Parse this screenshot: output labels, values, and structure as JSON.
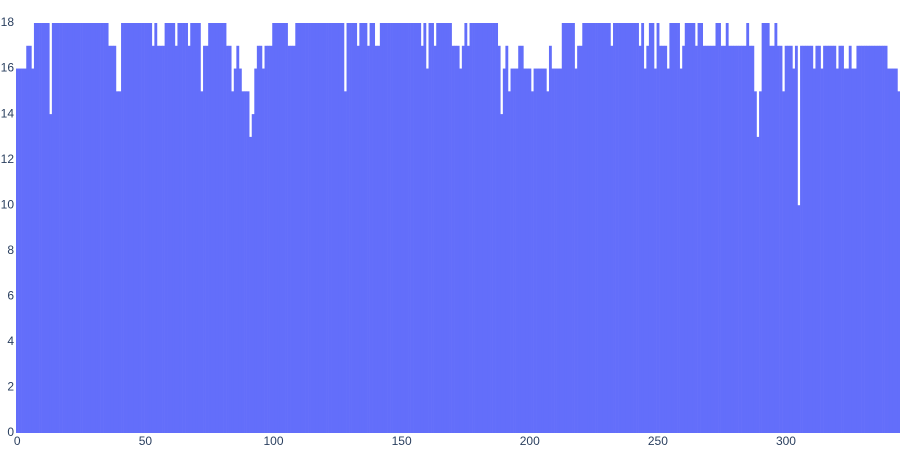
{
  "chart_data": {
    "type": "bar",
    "color": "#636efa",
    "x": [
      0,
      1,
      2,
      3,
      4,
      5,
      6,
      7,
      8,
      9,
      10,
      11,
      12,
      13,
      14,
      15,
      16,
      17,
      18,
      19,
      20,
      21,
      22,
      23,
      24,
      25,
      26,
      27,
      28,
      29,
      30,
      31,
      32,
      33,
      34,
      35,
      36,
      37,
      38,
      39,
      40,
      41,
      42,
      43,
      44,
      45,
      46,
      47,
      48,
      49,
      50,
      51,
      52,
      53,
      54,
      55,
      56,
      57,
      58,
      59,
      60,
      61,
      62,
      63,
      64,
      65,
      66,
      67,
      68,
      69,
      70,
      71,
      72,
      73,
      74,
      75,
      76,
      77,
      78,
      79,
      80,
      81,
      82,
      83,
      84,
      85,
      86,
      87,
      88,
      89,
      90,
      91,
      92,
      93,
      94,
      95,
      96,
      97,
      98,
      99,
      100,
      101,
      102,
      103,
      104,
      105,
      106,
      107,
      108,
      109,
      110,
      111,
      112,
      113,
      114,
      115,
      116,
      117,
      118,
      119,
      120,
      121,
      122,
      123,
      124,
      125,
      126,
      127,
      128,
      129,
      130,
      131,
      132,
      133,
      134,
      135,
      136,
      137,
      138,
      139,
      140,
      141,
      142,
      143,
      144,
      145,
      146,
      147,
      148,
      149,
      150,
      151,
      152,
      153,
      154,
      155,
      156,
      157,
      158,
      159,
      160,
      161,
      162,
      163,
      164,
      165,
      166,
      167,
      168,
      169,
      170,
      171,
      172,
      173,
      174,
      175,
      176,
      177,
      178,
      179,
      180,
      181,
      182,
      183,
      184,
      185,
      186,
      187,
      188,
      189,
      190,
      191,
      192,
      193,
      194,
      195,
      196,
      197,
      198,
      199,
      200,
      201,
      202,
      203,
      204,
      205,
      206,
      207,
      208,
      209,
      210,
      211,
      212,
      213,
      214,
      215,
      216,
      217,
      218,
      219,
      220,
      221,
      222,
      223,
      224,
      225,
      226,
      227,
      228,
      229,
      230,
      231,
      232,
      233,
      234,
      235,
      236,
      237,
      238,
      239,
      240,
      241,
      242,
      243,
      244,
      245,
      246,
      247,
      248,
      249,
      250,
      251,
      252,
      253,
      254,
      255,
      256,
      257,
      258,
      259,
      260,
      261,
      262,
      263,
      264,
      265,
      266,
      267,
      268,
      269,
      270,
      271,
      272,
      273,
      274,
      275,
      276,
      277,
      278,
      279,
      280,
      281,
      282,
      283,
      284,
      285,
      286,
      287,
      288,
      289,
      290,
      291,
      292,
      293,
      294,
      295,
      296,
      297,
      298,
      299,
      300,
      301,
      302,
      303,
      304,
      305,
      306,
      307,
      308,
      309,
      310,
      311,
      312,
      313,
      314,
      315,
      316,
      317,
      318,
      319,
      320,
      321,
      322,
      323,
      324,
      325,
      326,
      327,
      328,
      329,
      330,
      331,
      332,
      333,
      334,
      335,
      336,
      337,
      338,
      339,
      340,
      341,
      342,
      343,
      344
    ],
    "values": [
      16,
      16,
      16,
      16,
      17,
      17,
      16,
      18,
      18,
      18,
      18,
      18,
      18,
      14,
      18,
      18,
      18,
      18,
      18,
      18,
      18,
      18,
      18,
      18,
      18,
      18,
      18,
      18,
      18,
      18,
      18,
      18,
      18,
      18,
      18,
      18,
      17,
      17,
      17,
      15,
      15,
      18,
      18,
      18,
      18,
      18,
      18,
      18,
      18,
      18,
      18,
      18,
      18,
      17,
      18,
      17,
      17,
      17,
      18,
      18,
      18,
      18,
      17,
      18,
      18,
      18,
      18,
      17,
      18,
      18,
      18,
      18,
      15,
      17,
      17,
      18,
      18,
      18,
      18,
      18,
      18,
      18,
      17,
      17,
      15,
      16,
      17,
      16,
      15,
      15,
      15,
      13,
      14,
      16,
      17,
      17,
      16,
      17,
      17,
      17,
      18,
      18,
      18,
      18,
      18,
      18,
      17,
      17,
      17,
      18,
      18,
      18,
      18,
      18,
      18,
      18,
      18,
      18,
      18,
      18,
      18,
      18,
      18,
      18,
      18,
      18,
      18,
      18,
      15,
      18,
      18,
      18,
      18,
      17,
      18,
      18,
      18,
      17,
      18,
      18,
      17,
      17,
      18,
      18,
      18,
      18,
      18,
      18,
      18,
      18,
      18,
      18,
      18,
      18,
      18,
      18,
      18,
      18,
      17,
      18,
      16,
      18,
      18,
      17,
      18,
      18,
      18,
      18,
      18,
      18,
      17,
      17,
      17,
      16,
      17,
      18,
      17,
      18,
      18,
      18,
      18,
      18,
      18,
      18,
      18,
      18,
      18,
      18,
      17,
      14,
      16,
      17,
      15,
      16,
      16,
      16,
      17,
      17,
      16,
      16,
      16,
      15,
      16,
      16,
      16,
      16,
      16,
      15,
      17,
      16,
      16,
      16,
      16,
      18,
      18,
      18,
      18,
      18,
      16,
      17,
      17,
      18,
      18,
      18,
      18,
      18,
      18,
      18,
      18,
      18,
      18,
      18,
      17,
      18,
      18,
      18,
      18,
      18,
      18,
      18,
      18,
      18,
      18,
      17,
      18,
      16,
      17,
      18,
      18,
      16,
      18,
      17,
      17,
      17,
      16,
      18,
      18,
      18,
      18,
      16,
      17,
      18,
      18,
      18,
      18,
      17,
      18,
      18,
      17,
      17,
      17,
      17,
      17,
      18,
      18,
      17,
      17,
      18,
      17,
      17,
      17,
      17,
      17,
      17,
      17,
      18,
      17,
      17,
      15,
      13,
      15,
      18,
      18,
      18,
      17,
      17,
      18,
      17,
      17,
      15,
      17,
      17,
      17,
      16,
      17,
      10,
      17,
      17,
      17,
      17,
      17,
      16,
      17,
      17,
      16,
      17,
      17,
      17,
      17,
      17,
      16,
      17,
      17,
      16,
      16,
      17,
      16,
      16,
      17,
      17,
      17,
      17,
      17,
      17,
      17,
      17,
      17,
      17,
      17,
      17,
      16,
      16,
      16,
      16,
      15
    ],
    "xlim": [
      -0.5,
      344.5
    ],
    "xticks": [
      0,
      50,
      100,
      150,
      200,
      250,
      300
    ],
    "ylim": [
      0,
      18
    ],
    "yticks": [
      0,
      2,
      4,
      6,
      8,
      10,
      12,
      14,
      16,
      18
    ]
  }
}
